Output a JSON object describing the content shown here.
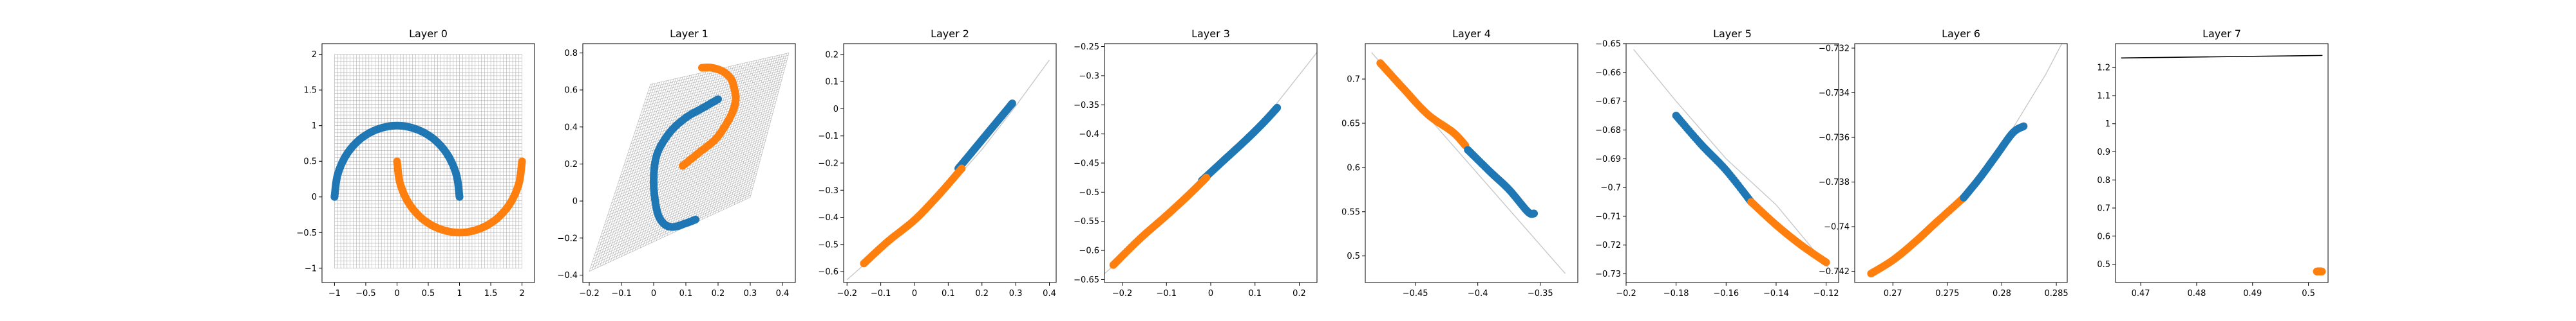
{
  "colors": {
    "blue": "#1f77b4",
    "orange": "#ff7f0e",
    "grid": "#b0b0b0",
    "line": "#c8c8c8",
    "black": "#000000"
  },
  "chart_data": [
    {
      "type": "scatter",
      "title": "Layer 0",
      "xlim": [
        -1.2,
        2.2
      ],
      "ylim": [
        -1.2,
        2.15
      ],
      "xticks": [
        -1.0,
        -0.5,
        0.0,
        0.5,
        1.0,
        1.5,
        2.0
      ],
      "yticks": [
        -1.0,
        -0.5,
        0.0,
        0.5,
        1.0,
        1.5,
        2.0
      ],
      "grid_mesh": "square x[-1,2] y[-1,2]",
      "series": [
        {
          "color": "blue",
          "x": [
            -1.0,
            -0.95,
            -0.81,
            -0.59,
            -0.31,
            0.0,
            0.31,
            0.59,
            0.81,
            0.95,
            1.0
          ],
          "y": [
            0.0,
            0.31,
            0.59,
            0.81,
            0.95,
            1.0,
            0.95,
            0.81,
            0.59,
            0.31,
            0.0
          ]
        },
        {
          "color": "orange",
          "x": [
            0.0,
            0.05,
            0.19,
            0.41,
            0.69,
            1.0,
            1.31,
            1.59,
            1.81,
            1.95,
            2.0
          ],
          "y": [
            0.5,
            0.19,
            -0.09,
            -0.31,
            -0.45,
            -0.5,
            -0.45,
            -0.31,
            -0.09,
            0.19,
            0.5
          ]
        }
      ]
    },
    {
      "type": "scatter",
      "title": "Layer 1",
      "xlim": [
        -0.22,
        0.44
      ],
      "ylim": [
        -0.44,
        0.85
      ],
      "xticks": [
        -0.2,
        -0.1,
        0.0,
        0.1,
        0.2,
        0.3,
        0.4
      ],
      "yticks": [
        -0.4,
        -0.2,
        0.0,
        0.2,
        0.4,
        0.6,
        0.8
      ],
      "grid_mesh": "quad (-0.2,-0.38) (0.3,0.02) (0.42,0.8) (-0.01,0.63)",
      "series": [
        {
          "color": "blue",
          "x": [
            0.2,
            0.15,
            0.1,
            0.05,
            0.01,
            0.0,
            0.01,
            0.03,
            0.06,
            0.1,
            0.13
          ],
          "y": [
            0.55,
            0.5,
            0.45,
            0.37,
            0.25,
            0.1,
            -0.05,
            -0.12,
            -0.14,
            -0.12,
            -0.1
          ]
        },
        {
          "color": "orange",
          "x": [
            0.09,
            0.14,
            0.19,
            0.22,
            0.245,
            0.255,
            0.25,
            0.24,
            0.215,
            0.18,
            0.15
          ],
          "y": [
            0.19,
            0.26,
            0.33,
            0.4,
            0.48,
            0.55,
            0.61,
            0.66,
            0.7,
            0.72,
            0.72
          ]
        }
      ]
    },
    {
      "type": "scatter",
      "title": "Layer 2",
      "xlim": [
        -0.21,
        0.42
      ],
      "ylim": [
        -0.64,
        0.24
      ],
      "xticks": [
        -0.2,
        -0.1,
        0.0,
        0.1,
        0.2,
        0.3,
        0.4
      ],
      "yticks": [
        -0.6,
        -0.5,
        -0.4,
        -0.3,
        -0.2,
        -0.1,
        0.0,
        0.1,
        0.2
      ],
      "curve": {
        "color": "line",
        "x": [
          -0.2,
          -0.1,
          0.0,
          0.1,
          0.2,
          0.3,
          0.4
        ],
        "y": [
          -0.63,
          -0.52,
          -0.41,
          -0.29,
          -0.15,
          0.01,
          0.18
        ]
      },
      "series": [
        {
          "color": "blue",
          "x": [
            0.13,
            0.17,
            0.21,
            0.25,
            0.29
          ],
          "y": [
            -0.22,
            -0.16,
            -0.1,
            -0.04,
            0.02
          ]
        },
        {
          "color": "orange",
          "x": [
            -0.15,
            -0.08,
            0.0,
            0.07,
            0.14
          ],
          "y": [
            -0.57,
            -0.49,
            -0.41,
            -0.32,
            -0.22
          ]
        }
      ]
    },
    {
      "type": "scatter",
      "title": "Layer 3",
      "xlim": [
        -0.24,
        0.24
      ],
      "ylim": [
        -0.655,
        -0.245
      ],
      "xticks": [
        -0.2,
        -0.1,
        0.0,
        0.1,
        0.2
      ],
      "yticks": [
        -0.65,
        -0.6,
        -0.55,
        -0.5,
        -0.45,
        -0.4,
        -0.35,
        -0.3,
        -0.25
      ],
      "curve": {
        "color": "line",
        "x": [
          -0.24,
          -0.1,
          0.0,
          0.1,
          0.24
        ],
        "y": [
          -0.64,
          -0.545,
          -0.47,
          -0.395,
          -0.26
        ]
      },
      "series": [
        {
          "color": "blue",
          "x": [
            -0.02,
            0.03,
            0.08,
            0.12,
            0.15
          ],
          "y": [
            -0.48,
            -0.445,
            -0.41,
            -0.38,
            -0.355
          ]
        },
        {
          "color": "orange",
          "x": [
            -0.22,
            -0.16,
            -0.1,
            -0.05,
            -0.01
          ],
          "y": [
            -0.625,
            -0.58,
            -0.54,
            -0.505,
            -0.475
          ]
        }
      ]
    },
    {
      "type": "scatter",
      "title": "Layer 4",
      "xlim": [
        -0.49,
        -0.32
      ],
      "ylim": [
        0.47,
        0.74
      ],
      "xticks": [
        -0.45,
        -0.4,
        -0.35
      ],
      "yticks": [
        0.5,
        0.55,
        0.6,
        0.65,
        0.7
      ],
      "curve": {
        "color": "line",
        "x": [
          -0.485,
          -0.33
        ],
        "y": [
          0.73,
          0.48
        ]
      },
      "series": [
        {
          "color": "orange",
          "x": [
            -0.478,
            -0.46,
            -0.44,
            -0.42,
            -0.41
          ],
          "y": [
            0.718,
            0.69,
            0.66,
            0.64,
            0.625
          ]
        },
        {
          "color": "blue",
          "x": [
            -0.408,
            -0.39,
            -0.375,
            -0.36,
            -0.355
          ],
          "y": [
            0.62,
            0.595,
            0.575,
            0.55,
            0.548
          ]
        }
      ]
    },
    {
      "type": "scatter",
      "title": "Layer 5",
      "xlim": [
        -0.2,
        -0.115
      ],
      "ylim": [
        -0.733,
        -0.65
      ],
      "xticks": [
        -0.2,
        -0.18,
        -0.16,
        -0.14,
        -0.12
      ],
      "yticks": [
        -0.73,
        -0.72,
        -0.71,
        -0.7,
        -0.69,
        -0.68,
        -0.67,
        -0.66,
        -0.65
      ],
      "curve": {
        "color": "line",
        "x": [
          -0.197,
          -0.18,
          -0.16,
          -0.14,
          -0.118
        ],
        "y": [
          -0.652,
          -0.67,
          -0.69,
          -0.706,
          -0.729
        ]
      },
      "series": [
        {
          "color": "blue",
          "x": [
            -0.18,
            -0.17,
            -0.16,
            -0.15
          ],
          "y": [
            -0.675,
            -0.685,
            -0.694,
            -0.705
          ]
        },
        {
          "color": "orange",
          "x": [
            -0.15,
            -0.14,
            -0.13,
            -0.12
          ],
          "y": [
            -0.705,
            -0.713,
            -0.72,
            -0.726
          ]
        }
      ]
    },
    {
      "type": "scatter",
      "title": "Layer 6",
      "xlim": [
        0.2665,
        0.286
      ],
      "ylim": [
        -0.7425,
        -0.7318
      ],
      "xticks": [
        0.27,
        0.275,
        0.28,
        0.285
      ],
      "yticks": [
        -0.742,
        -0.74,
        -0.738,
        -0.736,
        -0.734,
        -0.732
      ],
      "curve": {
        "color": "line",
        "x": [
          0.268,
          0.272,
          0.276,
          0.28,
          0.284,
          0.2855
        ],
        "y": [
          -0.7421,
          -0.7407,
          -0.7388,
          -0.7364,
          -0.7332,
          -0.7318
        ]
      },
      "series": [
        {
          "color": "orange",
          "x": [
            0.268,
            0.27,
            0.272,
            0.274,
            0.2765
          ],
          "y": [
            -0.7421,
            -0.7415,
            -0.7407,
            -0.7398,
            -0.7387
          ]
        },
        {
          "color": "blue",
          "x": [
            0.2765,
            0.278,
            0.2795,
            0.281,
            0.282
          ],
          "y": [
            -0.7387,
            -0.7378,
            -0.7368,
            -0.7358,
            -0.7355
          ]
        }
      ]
    },
    {
      "type": "scatter",
      "title": "Layer 7",
      "xlim": [
        0.4655,
        0.5035
      ],
      "ylim": [
        0.435,
        1.285
      ],
      "xticks": [
        0.47,
        0.48,
        0.49,
        0.5
      ],
      "yticks": [
        0.5,
        0.6,
        0.7,
        0.8,
        0.9,
        1.0,
        1.1,
        1.2
      ],
      "curve": {
        "color": "black",
        "x": [
          0.4665,
          0.5025
        ],
        "y": [
          1.234,
          1.243
        ]
      },
      "series": [
        {
          "color": "blue",
          "x": [
            0.5018,
            0.5022
          ],
          "y": [
            0.474,
            0.474
          ]
        },
        {
          "color": "orange",
          "x": [
            0.5015,
            0.5018,
            0.5021,
            0.5024
          ],
          "y": [
            0.474,
            0.474,
            0.474,
            0.474
          ]
        }
      ]
    }
  ]
}
